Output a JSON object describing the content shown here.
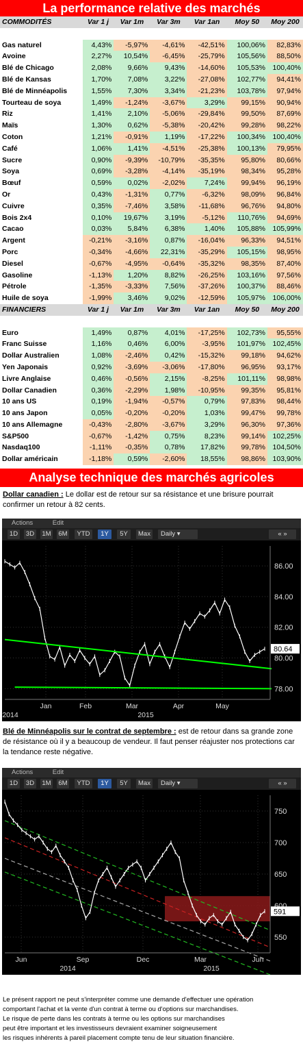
{
  "title_main": "La performance relative des marchés",
  "commodities": {
    "header": [
      "COMMODITÉS",
      "Var 1 j",
      "Var 1m",
      "Var 3m",
      "Var 1an",
      "Moy 50",
      "Moy 200"
    ],
    "rows": [
      [
        "Gas naturel",
        "4,43%",
        "-5,97%",
        "-4,61%",
        "-42,51%",
        "100,06%",
        "82,83%"
      ],
      [
        "Avoine",
        "2,27%",
        "10,54%",
        "-6,45%",
        "-25,79%",
        "105,56%",
        "88,50%"
      ],
      [
        "Blé de Chicago",
        "2,08%",
        "9,66%",
        "9,43%",
        "-14,60%",
        "105,53%",
        "100,40%"
      ],
      [
        "Blé de Kansas",
        "1,70%",
        "7,08%",
        "3,22%",
        "-27,08%",
        "102,77%",
        "94,41%"
      ],
      [
        "Blé de Minnéapolis",
        "1,55%",
        "7,30%",
        "3,34%",
        "-21,23%",
        "103,78%",
        "97,94%"
      ],
      [
        "Tourteau de soya",
        "1,49%",
        "-1,24%",
        "-3,67%",
        "3,29%",
        "99,15%",
        "90,94%"
      ],
      [
        "Riz",
        "1,41%",
        "2,10%",
        "-5,06%",
        "-29,84%",
        "99,50%",
        "87,69%"
      ],
      [
        "Maïs",
        "1,30%",
        "0,62%",
        "-5,38%",
        "-20,42%",
        "99,28%",
        "98,22%"
      ],
      [
        "Coton",
        "1,21%",
        "-0,91%",
        "1,19%",
        "-17,22%",
        "100,34%",
        "100,40%"
      ],
      [
        "Café",
        "1,06%",
        "1,41%",
        "-4,51%",
        "-25,38%",
        "100,13%",
        "79,95%"
      ],
      [
        "Sucre",
        "0,90%",
        "-9,39%",
        "-10,79%",
        "-35,35%",
        "95,80%",
        "80,66%"
      ],
      [
        "Soya",
        "0,69%",
        "-3,28%",
        "-4,14%",
        "-35,19%",
        "98,34%",
        "95,28%"
      ],
      [
        "Bœuf",
        "0,59%",
        "0,02%",
        "-2,02%",
        "7,24%",
        "99,94%",
        "96,19%"
      ],
      [
        "Or",
        "0,43%",
        "-1,31%",
        "0,77%",
        "-6,32%",
        "98,09%",
        "96,84%"
      ],
      [
        "Cuivre",
        "0,35%",
        "-7,46%",
        "3,58%",
        "-11,68%",
        "96,76%",
        "94,80%"
      ],
      [
        "Bois 2x4",
        "0,10%",
        "19,67%",
        "3,19%",
        "-5,12%",
        "110,76%",
        "94,69%"
      ],
      [
        "Cacao",
        "0,03%",
        "5,84%",
        "6,38%",
        "1,40%",
        "105,88%",
        "105,99%"
      ],
      [
        "Argent",
        "-0,21%",
        "-3,16%",
        "0,87%",
        "-16,04%",
        "96,33%",
        "94,51%"
      ],
      [
        "Porc",
        "-0,34%",
        "-4,66%",
        "22,31%",
        "-35,29%",
        "105,15%",
        "98,95%"
      ],
      [
        "Diesel",
        "-0,67%",
        "-4,95%",
        "-0,64%",
        "-35,32%",
        "98,35%",
        "87,40%"
      ],
      [
        "Gasoline",
        "-1,13%",
        "1,20%",
        "8,82%",
        "-26,25%",
        "103,16%",
        "97,56%"
      ],
      [
        "Pétrole",
        "-1,35%",
        "-3,33%",
        "7,56%",
        "-37,26%",
        "100,37%",
        "88,46%"
      ],
      [
        "Huile de soya",
        "-1,99%",
        "3,46%",
        "9,02%",
        "-12,59%",
        "105,97%",
        "106,00%"
      ]
    ]
  },
  "financials": {
    "header": [
      "FINANCIERS",
      "Var 1 j",
      "Var 1m",
      "Var 3m",
      "Var 1an",
      "Moy 50",
      "Moy 200"
    ],
    "rows": [
      [
        "Euro",
        "1,49%",
        "0,87%",
        "4,01%",
        "-17,25%",
        "102,73%",
        "95,55%"
      ],
      [
        "Franc Suisse",
        "1,16%",
        "0,46%",
        "6,00%",
        "-3,95%",
        "101,97%",
        "102,45%"
      ],
      [
        "Dollar Australien",
        "1,08%",
        "-2,46%",
        "0,42%",
        "-15,32%",
        "99,18%",
        "94,62%"
      ],
      [
        "Yen Japonais",
        "0,92%",
        "-3,69%",
        "-3,06%",
        "-17,80%",
        "96,95%",
        "93,17%"
      ],
      [
        "Livre Anglaise",
        "0,46%",
        "-0,56%",
        "2,15%",
        "-8,25%",
        "101,11%",
        "98,98%"
      ],
      [
        "Dollar Canadien",
        "0,36%",
        "-2,29%",
        "1,98%",
        "-10,95%",
        "99,35%",
        "95,81%"
      ],
      [
        "10 ans US",
        "0,19%",
        "-1,94%",
        "-0,57%",
        "0,79%",
        "97,83%",
        "98,44%"
      ],
      [
        "10 ans Japon",
        "0,05%",
        "-0,20%",
        "-0,20%",
        "1,03%",
        "99,47%",
        "99,78%"
      ],
      [
        "10 ans Allemagne",
        "-0,43%",
        "-2,80%",
        "-3,67%",
        "3,29%",
        "96,30%",
        "97,36%"
      ],
      [
        "S&P500",
        "-0,67%",
        "-1,42%",
        "0,75%",
        "8,23%",
        "99,14%",
        "102,25%"
      ],
      [
        "Nasdaq100",
        "-1,11%",
        "-0,35%",
        "0,78%",
        "17,82%",
        "99,78%",
        "104,50%"
      ],
      [
        "Dollar américain",
        "-1,18%",
        "0,59%",
        "-2,60%",
        "18,55%",
        "98,86%",
        "103,90%"
      ]
    ]
  },
  "title_tech": "Analyse technique des marchés agricoles",
  "cad": {
    "label": "Dollar canadien :",
    "text": " Le dollar est de retour sur sa résistance et une brisure pourrait confirmer un retour à 82 cents."
  },
  "wheat": {
    "label": "Blé de Minnéapolis sur le contrat de septembre :",
    "text": " est de retour dans sa grande zone de résistance où il y a beaucoup de vendeur. Il faut penser réajuster nos protections car la tendance reste négative."
  },
  "toolbar": {
    "actions": "Actions",
    "edit": "Edit",
    "ranges": [
      "1D",
      "3D",
      "1M",
      "6M",
      "YTD",
      "1Y",
      "5Y",
      "Max"
    ],
    "selected": "1Y",
    "daily": "Daily"
  },
  "chart_data": [
    {
      "type": "line",
      "series": [
        {
          "values": [
            86.3,
            86.1,
            85.9,
            86.2,
            85.6,
            84.8,
            83.9,
            83.2,
            81.3,
            80.1,
            79.9,
            80.7,
            79.5,
            80.2,
            79.8,
            80.5,
            80.0,
            79.6,
            80.1,
            78.9,
            79.2,
            79.8,
            80.4,
            80.1,
            78.7,
            78.2,
            79.5,
            80.4,
            80.9,
            79.6,
            80.4,
            80.9,
            80.1,
            79.4,
            80.4,
            81.4,
            82.3,
            81.9,
            82.4,
            82.9,
            82.7,
            83.1,
            83.6,
            82.9,
            83.8,
            83.3,
            82.1,
            81.4,
            80.4,
            79.8,
            80.2,
            80.4,
            80.6
          ]
        }
      ],
      "ylim": [
        77.3,
        87.3
      ],
      "yticks": [
        "86.00",
        "84.00",
        "82.00",
        "80.00",
        "78.00"
      ],
      "xticks": [
        "Jan",
        "Feb",
        "Mar",
        "Apr",
        "May"
      ],
      "year_labels": [
        "2014",
        "2015"
      ],
      "last_value": "80.64",
      "trendlines": [
        {
          "color": "#00ff00",
          "from": [
            0,
            81.2
          ],
          "to": [
            53,
            79.3
          ]
        },
        {
          "color": "#00ff00",
          "from": [
            2,
            78.1
          ],
          "to": [
            53,
            78.0
          ]
        }
      ]
    },
    {
      "type": "line",
      "series": [
        {
          "values": [
            765,
            745,
            735,
            728,
            720,
            715,
            710,
            705,
            710,
            700,
            690,
            685,
            695,
            680,
            670,
            660,
            640,
            625,
            600,
            580,
            590,
            620,
            640,
            650,
            660,
            645,
            630,
            640,
            650,
            660,
            665,
            670,
            660,
            640,
            650,
            660,
            670,
            680,
            690,
            700,
            685,
            675,
            640,
            620,
            600,
            585,
            575,
            570,
            580,
            585,
            575,
            570,
            580,
            590,
            570,
            560,
            550,
            545,
            555,
            570,
            585,
            591
          ]
        }
      ],
      "ylim": [
        525,
        775
      ],
      "yticks": [
        "750",
        "700",
        "650",
        "600",
        "550"
      ],
      "xticks": [
        "Jun",
        "Sep",
        "Dec",
        "Mar",
        "Jun"
      ],
      "year_labels": [
        "2014",
        "2015"
      ],
      "last_value": "591",
      "resistance_zone": [
        575,
        615
      ]
    }
  ],
  "disclaimer": [
    "Le présent rapport ne peut s'interpréter comme une demande d'effectuer une opération",
    "comportant l'achat et la vente d'un contrat à terme ou d'options sur marchandises.",
    "Le risque de perte dans les contrats à terme ou les options sur marchandises",
    "peut être important et les investisseurs devraient examiner soigneusement",
    "les risques inhérents à pareil placement compte tenu de leur situation financière."
  ]
}
